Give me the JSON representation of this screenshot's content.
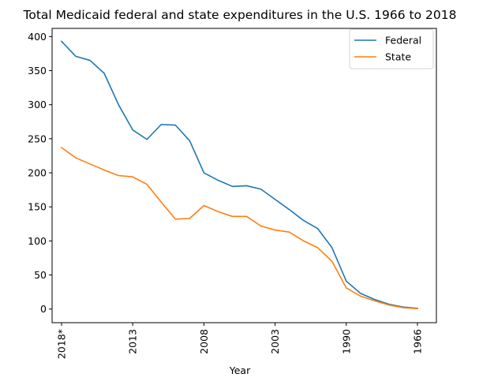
{
  "chart_data": {
    "type": "line",
    "title": "Total Medicaid federal and state expenditures in the U.S. 1966 to 2018",
    "xlabel": "Year",
    "ylabel": "",
    "x_order": "descending-years-left-to-right",
    "xtick_labels": [
      "2018*",
      "2013",
      "2008",
      "2003",
      "1990",
      "1966"
    ],
    "ylim": [
      -20,
      412
    ],
    "yticks": [
      0,
      50,
      100,
      150,
      200,
      250,
      300,
      350,
      400
    ],
    "grid": false,
    "legend_position": "upper right",
    "colors": {
      "Federal": "#1f77b4",
      "State": "#ff7f0e"
    },
    "series": [
      {
        "name": "Federal",
        "values": [
          393,
          371,
          365,
          346,
          300,
          263,
          249,
          271,
          270,
          247,
          200,
          189,
          180,
          181,
          176,
          161,
          146,
          130,
          118,
          90,
          41,
          23,
          14,
          7,
          3,
          1
        ]
      },
      {
        "name": "State",
        "values": [
          237,
          222,
          213,
          204,
          196,
          194,
          183,
          157,
          132,
          133,
          152,
          143,
          136,
          136,
          122,
          116,
          113,
          100,
          90,
          70,
          31,
          19,
          12,
          6,
          2,
          0.5
        ]
      }
    ]
  }
}
